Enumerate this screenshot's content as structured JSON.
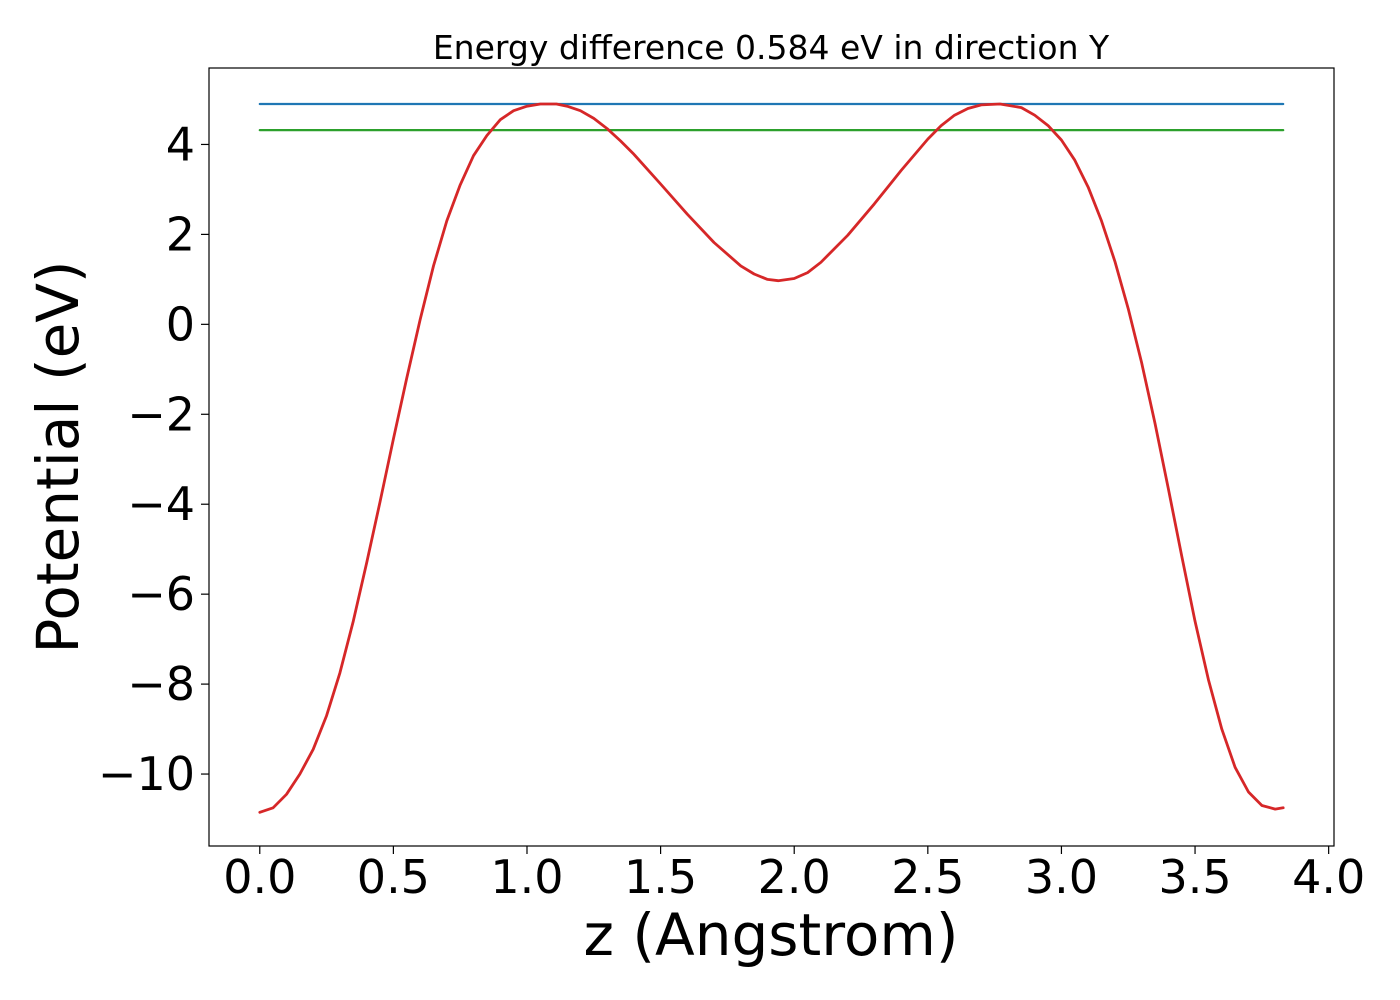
{
  "chart_data": {
    "type": "line",
    "title": "Energy difference 0.584 eV in direction Y",
    "xlabel": "z (Angstrom)",
    "ylabel": "Potential (eV)",
    "xlim": [
      -0.19,
      4.02
    ],
    "ylim": [
      -11.6,
      5.7
    ],
    "xticks": [
      0.0,
      0.5,
      1.0,
      1.5,
      2.0,
      2.5,
      3.0,
      3.5,
      4.0
    ],
    "xtick_labels": [
      "0.0",
      "0.5",
      "1.0",
      "1.5",
      "2.0",
      "2.5",
      "3.0",
      "3.5",
      "4.0"
    ],
    "yticks": [
      -10,
      -8,
      -6,
      -4,
      -2,
      0,
      2,
      4
    ],
    "ytick_labels": [
      "−10",
      "−8",
      "−6",
      "−4",
      "−2",
      "0",
      "2",
      "4"
    ],
    "grid": false,
    "legend": "none",
    "series": [
      {
        "color": "#1f77b4",
        "x": [
          0.0,
          3.83
        ],
        "y": [
          4.9,
          4.9
        ]
      },
      {
        "color": "#2ca02c",
        "x": [
          0.0,
          3.83
        ],
        "y": [
          4.32,
          4.32
        ]
      },
      {
        "color": "#d62728",
        "x": [
          0.0,
          0.05,
          0.1,
          0.15,
          0.2,
          0.25,
          0.3,
          0.35,
          0.4,
          0.45,
          0.5,
          0.55,
          0.6,
          0.65,
          0.7,
          0.75,
          0.8,
          0.85,
          0.9,
          0.95,
          1.0,
          1.05,
          1.11,
          1.15,
          1.2,
          1.25,
          1.3,
          1.35,
          1.4,
          1.5,
          1.6,
          1.7,
          1.8,
          1.85,
          1.9,
          1.94,
          2.0,
          2.05,
          2.1,
          2.2,
          2.3,
          2.4,
          2.5,
          2.55,
          2.6,
          2.65,
          2.7,
          2.77,
          2.85,
          2.9,
          2.95,
          3.0,
          3.05,
          3.1,
          3.15,
          3.2,
          3.25,
          3.3,
          3.35,
          3.4,
          3.45,
          3.5,
          3.55,
          3.6,
          3.65,
          3.7,
          3.75,
          3.8,
          3.83
        ],
        "y": [
          -10.85,
          -10.75,
          -10.45,
          -10.0,
          -9.45,
          -8.7,
          -7.75,
          -6.6,
          -5.3,
          -3.95,
          -2.55,
          -1.2,
          0.1,
          1.3,
          2.3,
          3.1,
          3.75,
          4.2,
          4.55,
          4.75,
          4.85,
          4.9,
          4.9,
          4.85,
          4.75,
          4.58,
          4.35,
          4.08,
          3.78,
          3.12,
          2.45,
          1.82,
          1.3,
          1.12,
          1.0,
          0.97,
          1.02,
          1.15,
          1.38,
          1.98,
          2.68,
          3.42,
          4.12,
          4.42,
          4.65,
          4.8,
          4.88,
          4.9,
          4.82,
          4.65,
          4.42,
          4.1,
          3.65,
          3.05,
          2.3,
          1.4,
          0.35,
          -0.85,
          -2.2,
          -3.65,
          -5.15,
          -6.6,
          -7.9,
          -9.0,
          -9.85,
          -10.4,
          -10.7,
          -10.78,
          -10.75
        ]
      }
    ]
  }
}
